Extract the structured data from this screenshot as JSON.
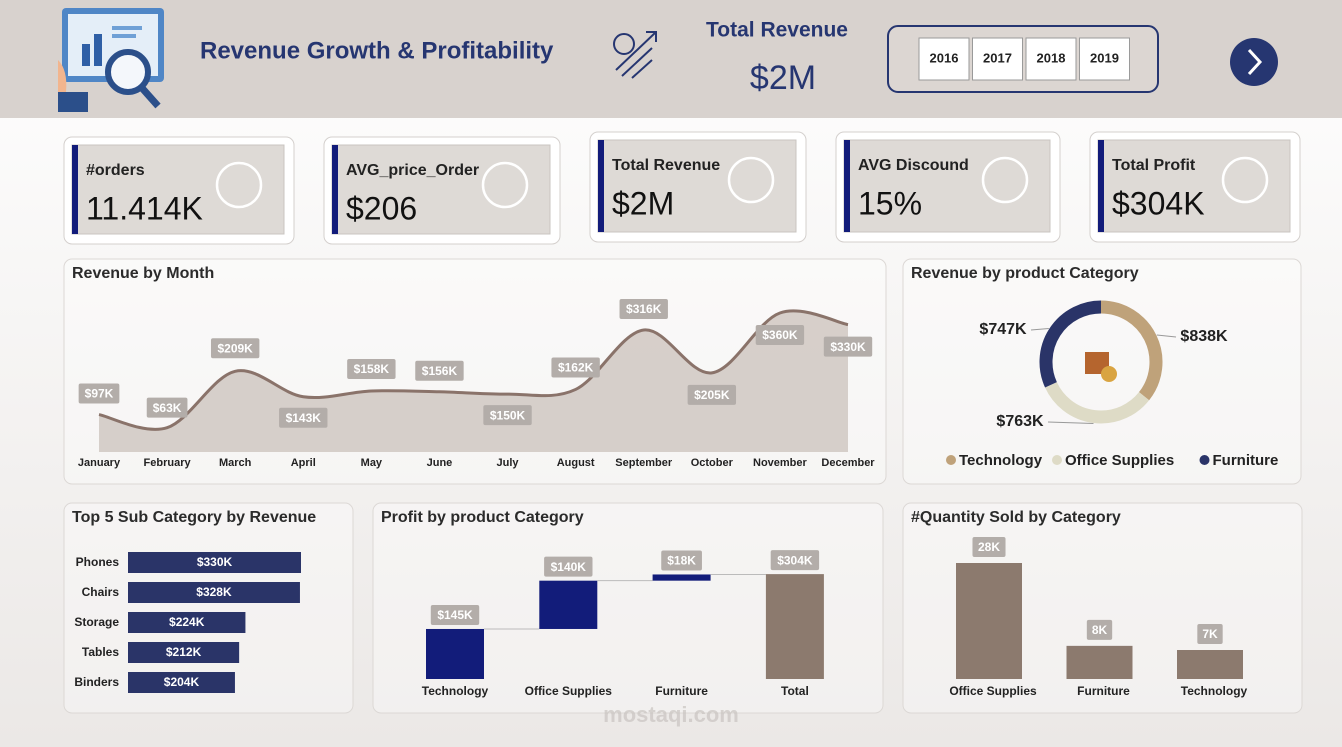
{
  "header": {
    "title": "Revenue Growth & Profitability",
    "kpi_label": "Total Revenue",
    "kpi_value": "$2M",
    "years": [
      "2016",
      "2017",
      "2018",
      "2019"
    ]
  },
  "kpis": [
    {
      "label": "#orders",
      "value": "11.414K"
    },
    {
      "label": "AVG_price_Order",
      "value": "$206"
    },
    {
      "label": "Total Revenue",
      "value": "$2M"
    },
    {
      "label": "AVG Discound",
      "value": "15%"
    },
    {
      "label": "Total Profit",
      "value": "$304K"
    }
  ],
  "chart_data": [
    {
      "type": "line",
      "title": "Revenue by Month",
      "categories": [
        "January",
        "February",
        "March",
        "April",
        "May",
        "June",
        "July",
        "August",
        "September",
        "October",
        "November",
        "December"
      ],
      "values": [
        97,
        63,
        209,
        143,
        158,
        156,
        150,
        162,
        316,
        205,
        360,
        330
      ],
      "value_labels": [
        "$97K",
        "$63K",
        "$209K",
        "$143K",
        "$158K",
        "$156K",
        "$150K",
        "$162K",
        "$316K",
        "$205K",
        "$360K",
        "$330K"
      ],
      "color": "#8a736a",
      "area_color": "#cbc1bb"
    },
    {
      "type": "donut",
      "title": "Revenue by product Category",
      "categories": [
        "Technology",
        "Office Supplies",
        "Furniture"
      ],
      "values": [
        838,
        763,
        747
      ],
      "value_labels": [
        "$838K",
        "$763K",
        "$747K"
      ],
      "colors": [
        "#bfa27a",
        "#dedbc6",
        "#2a3468"
      ]
    },
    {
      "type": "hbar",
      "title": "Top 5 Sub Category by Revenue",
      "categories": [
        "Phones",
        "Chairs",
        "Storage",
        "Tables",
        "Binders"
      ],
      "values": [
        330,
        328,
        224,
        212,
        204
      ],
      "value_labels": [
        "$330K",
        "$328K",
        "$224K",
        "$212K",
        "$204K"
      ],
      "color": "#2a3468"
    },
    {
      "type": "waterfall",
      "title": "Profit by product Category",
      "categories": [
        "Technology",
        "Office Supplies",
        "Furniture",
        "Total"
      ],
      "values": [
        145,
        140,
        18,
        304
      ],
      "value_labels": [
        "$145K",
        "$140K",
        "$18K",
        "$304K"
      ],
      "color": "#121c7a",
      "total_color": "#8c7a6e"
    },
    {
      "type": "bar",
      "title": "#Quantity Sold by Category",
      "categories": [
        "Office Supplies",
        "Furniture",
        "Technology"
      ],
      "values": [
        28,
        8,
        7
      ],
      "value_labels": [
        "28K",
        "8K",
        "7K"
      ],
      "color": "#8c7a6e"
    }
  ],
  "watermark": "mostaqi.com"
}
